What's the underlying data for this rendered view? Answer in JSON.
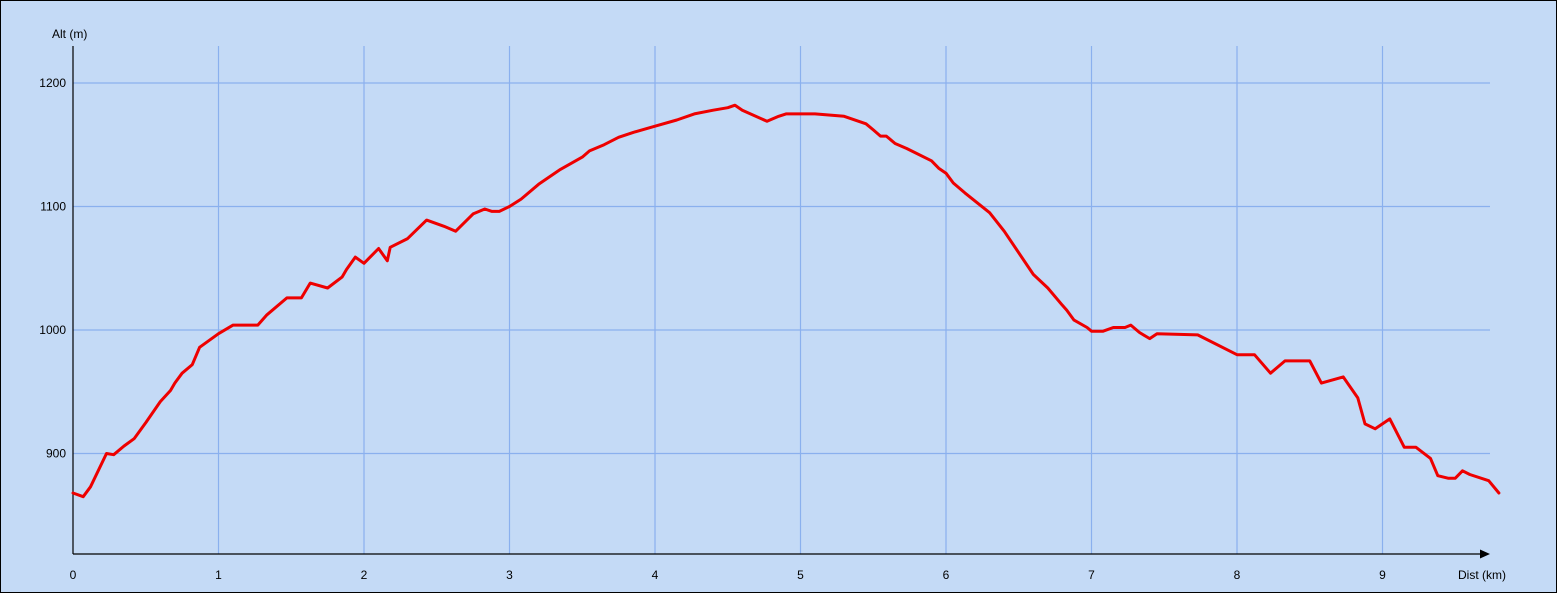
{
  "chart_data": {
    "type": "line",
    "title": "",
    "xlabel": "Dist (km)",
    "ylabel": "Alt (m)",
    "xlim": [
      0,
      9.9
    ],
    "ylim": [
      820,
      1230
    ],
    "x_ticks": [
      0,
      1,
      2,
      3,
      4,
      5,
      6,
      7,
      8,
      9
    ],
    "y_ticks": [
      900,
      1000,
      1100,
      1200
    ],
    "grid": true,
    "legend": "none",
    "colors": {
      "background": "#c4daf6",
      "grid": "#8ab0ee",
      "line": "#ee0000",
      "axis": "#000000",
      "frame": "#000000"
    },
    "series": [
      {
        "x": [
          0,
          0.07,
          0.12,
          0.23,
          0.28,
          0.35,
          0.42,
          0.5,
          0.6,
          0.67,
          0.7,
          0.75,
          0.82,
          0.87,
          1.0,
          1.1,
          1.27,
          1.33,
          1.47,
          1.57,
          1.63,
          1.75,
          1.85,
          1.88,
          1.94,
          2.0,
          2.1,
          2.16,
          2.18,
          2.3,
          2.43,
          2.55,
          2.63,
          2.75,
          2.83,
          2.88,
          2.93,
          3.0,
          3.08,
          3.2,
          3.35,
          3.5,
          3.55,
          3.65,
          3.75,
          3.85,
          4.0,
          4.15,
          4.27,
          4.4,
          4.5,
          4.55,
          4.6,
          4.77,
          4.85,
          4.9,
          5.1,
          5.3,
          5.45,
          5.5,
          5.55,
          5.59,
          5.65,
          5.73,
          5.9,
          5.95,
          6.0,
          6.05,
          6.13,
          6.3,
          6.4,
          6.6,
          6.7,
          6.8,
          6.83,
          6.88,
          6.97,
          7.0,
          7.08,
          7.15,
          7.23,
          7.27,
          7.33,
          7.4,
          7.45,
          7.73,
          8.0,
          8.12,
          8.23,
          8.33,
          8.5,
          8.58,
          8.73,
          8.83,
          8.88,
          8.95,
          9.05,
          9.15,
          9.23,
          9.33,
          9.38,
          9.45,
          9.5,
          9.55,
          9.6,
          9.73,
          9.8
        ],
        "y": [
          868,
          865,
          873,
          900,
          899,
          906,
          912,
          925,
          942,
          951,
          957,
          965,
          972,
          986,
          997,
          1004,
          1004,
          1012,
          1026,
          1026,
          1038,
          1034,
          1043,
          1049,
          1059,
          1054,
          1066,
          1056,
          1067,
          1074,
          1089,
          1084,
          1080,
          1094,
          1098,
          1096,
          1096,
          1100,
          1106,
          1118,
          1130,
          1140,
          1145,
          1150,
          1156,
          1160,
          1165,
          1170,
          1175,
          1178,
          1180,
          1182,
          1178,
          1169,
          1173,
          1175,
          1175,
          1173,
          1167,
          1162,
          1157,
          1157,
          1151,
          1147,
          1137,
          1131,
          1127,
          1119,
          1111,
          1095,
          1080,
          1045,
          1034,
          1020,
          1016,
          1008,
          1002,
          999,
          999,
          1002,
          1002,
          1004,
          998,
          993,
          997,
          996,
          980,
          980,
          965,
          975,
          975,
          957,
          962,
          945,
          924,
          920,
          928,
          905,
          905,
          896,
          882,
          880,
          880,
          886,
          883,
          878,
          868
        ]
      }
    ]
  }
}
